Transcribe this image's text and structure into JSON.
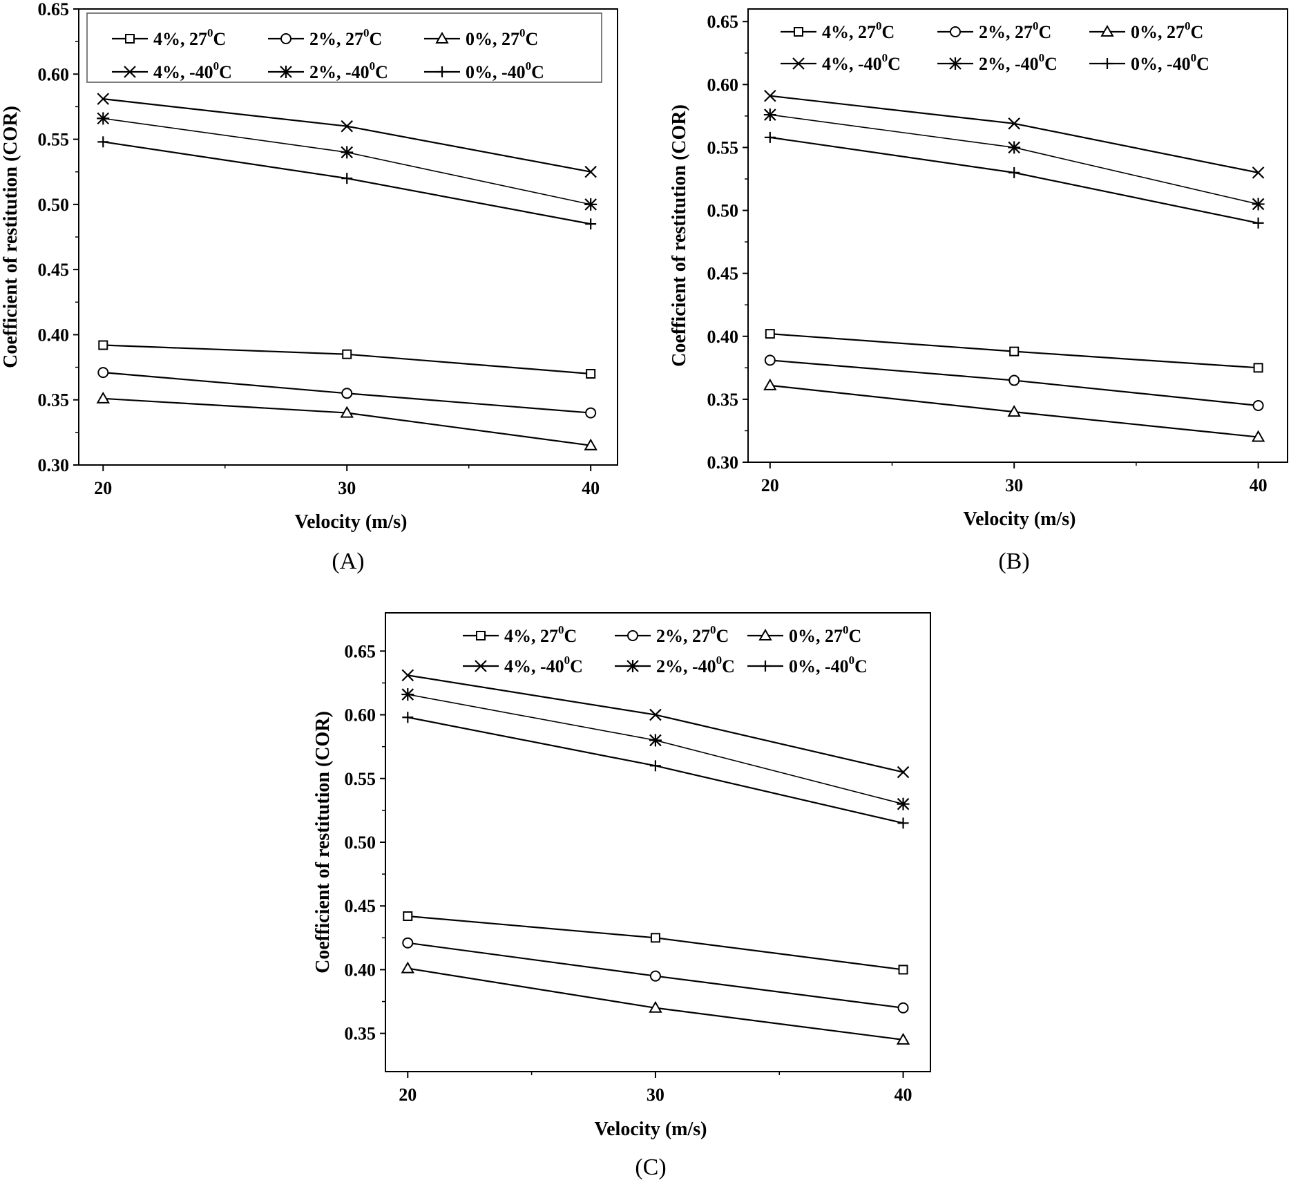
{
  "figure": {
    "series_styles": [
      {
        "name": "4%, 27°C",
        "marker": "square"
      },
      {
        "name": "2%, 27°C",
        "marker": "circle"
      },
      {
        "name": "0%, 27°C",
        "marker": "triangle"
      },
      {
        "name": "4%, -40°C",
        "marker": "x"
      },
      {
        "name": "2%, -40°C",
        "marker": "asterisk"
      },
      {
        "name": "0%, -40°C",
        "marker": "plus"
      }
    ],
    "line_color": "#000000",
    "background": "#ffffff"
  },
  "chart_data": [
    {
      "type": "line",
      "panel_label": "(A)",
      "xlabel": "Velocity (m/s)",
      "ylabel": "Coefficient of restitution (COR)",
      "x": [
        20,
        30,
        40
      ],
      "xlim": [
        19,
        41.1
      ],
      "ylim": [
        0.3,
        0.65
      ],
      "yticks": [
        "0.30",
        "0.35",
        "0.40",
        "0.45",
        "0.50",
        "0.55",
        "0.60",
        "0.65"
      ],
      "xticks": [
        "20",
        "30",
        "40"
      ],
      "legend": [
        [
          {
            "main": "4%, 27",
            "sup": "0",
            "tail": "C"
          },
          {
            "main": "2%,  27",
            "sup": "0",
            "tail": "C"
          },
          {
            "main": "0%,  27",
            "sup": "0",
            "tail": "C"
          }
        ],
        [
          {
            "main": "4%,  -40",
            "sup": "0",
            "tail": "C"
          },
          {
            "main": "2%,  -40",
            "sup": "0",
            "tail": "C"
          },
          {
            "main": "0%,  -40",
            "sup": "0",
            "tail": "C"
          }
        ]
      ],
      "legend_boxed": true,
      "series": [
        {
          "name": "4%, 27°C",
          "values": [
            0.392,
            0.385,
            0.37
          ]
        },
        {
          "name": "2%, 27°C",
          "values": [
            0.371,
            0.355,
            0.34
          ]
        },
        {
          "name": "0%, 27°C",
          "values": [
            0.351,
            0.34,
            0.315
          ]
        },
        {
          "name": "4%, -40°C",
          "values": [
            0.581,
            0.56,
            0.525
          ]
        },
        {
          "name": "2%, -40°C",
          "values": [
            0.566,
            0.54,
            0.5
          ]
        },
        {
          "name": "0%, -40°C",
          "values": [
            0.548,
            0.52,
            0.485
          ]
        }
      ]
    },
    {
      "type": "line",
      "panel_label": "(B)",
      "xlabel": "Velocity (m/s)",
      "ylabel": "Coefficient of restitution (COR)",
      "x": [
        20,
        30,
        40
      ],
      "xlim": [
        19.1,
        41.2
      ],
      "ylim": [
        0.3,
        0.66
      ],
      "yticks": [
        "0.30",
        "0.35",
        "0.40",
        "0.45",
        "0.50",
        "0.55",
        "0.60",
        "0.65"
      ],
      "xticks": [
        "20",
        "30",
        "40"
      ],
      "legend": [
        [
          {
            "main": "4%, 27",
            "sup": "0",
            "tail": "C"
          },
          {
            "main": "2%,  27",
            "sup": "0",
            "tail": "C"
          },
          {
            "main": "0%,  27",
            "sup": "0",
            "tail": "C"
          }
        ],
        [
          {
            "main": "4%,  -40",
            "sup": "0",
            "tail": "C"
          },
          {
            "main": "2%,  -40",
            "sup": "0",
            "tail": "C"
          },
          {
            "main": "0%,  -40",
            "sup": "0",
            "tail": "C"
          }
        ]
      ],
      "legend_boxed": false,
      "series": [
        {
          "name": "4%, 27°C",
          "values": [
            0.402,
            0.388,
            0.375
          ]
        },
        {
          "name": "2%, 27°C",
          "values": [
            0.381,
            0.365,
            0.345
          ]
        },
        {
          "name": "0%, 27°C",
          "values": [
            0.361,
            0.34,
            0.32
          ]
        },
        {
          "name": "4%, -40°C",
          "values": [
            0.591,
            0.569,
            0.53
          ]
        },
        {
          "name": "2%, -40°C",
          "values": [
            0.576,
            0.55,
            0.505
          ]
        },
        {
          "name": "0%, -40°C",
          "values": [
            0.558,
            0.53,
            0.49
          ]
        }
      ]
    },
    {
      "type": "line",
      "panel_label": "(C)",
      "xlabel": "Velocity (m/s)",
      "ylabel": "Coefficient of restitution (COR)",
      "x": [
        20,
        30,
        40
      ],
      "xlim": [
        19.1,
        41.1
      ],
      "ylim": [
        0.32,
        0.68
      ],
      "yticks": [
        "0.35",
        "0.40",
        "0.45",
        "0.50",
        "0.55",
        "0.60",
        "0.65"
      ],
      "xticks": [
        "20",
        "30",
        "40"
      ],
      "legend": [
        [
          {
            "main": "4%, 27",
            "sup": "0",
            "tail": "C"
          },
          {
            "main": "2%,  27",
            "sup": "0",
            "tail": "C"
          },
          {
            "main": "0%, 27",
            "sup": "0",
            "tail": "C"
          }
        ],
        [
          {
            "main": "4%, -40",
            "sup": "0",
            "tail": "C"
          },
          {
            "main": "2%,  -40",
            "sup": "0",
            "tail": "C"
          },
          {
            "main": "0%,  -40",
            "sup": "0",
            "tail": "C"
          }
        ]
      ],
      "legend_boxed": false,
      "series": [
        {
          "name": "4%, 27°C",
          "values": [
            0.442,
            0.425,
            0.4
          ]
        },
        {
          "name": "2%, 27°C",
          "values": [
            0.421,
            0.395,
            0.37
          ]
        },
        {
          "name": "0%, 27°C",
          "values": [
            0.401,
            0.37,
            0.345
          ]
        },
        {
          "name": "4%, -40°C",
          "values": [
            0.631,
            0.6,
            0.555
          ]
        },
        {
          "name": "2%, -40°C",
          "values": [
            0.616,
            0.58,
            0.53
          ]
        },
        {
          "name": "0%, -40°C",
          "values": [
            0.598,
            0.56,
            0.515
          ]
        }
      ]
    }
  ]
}
